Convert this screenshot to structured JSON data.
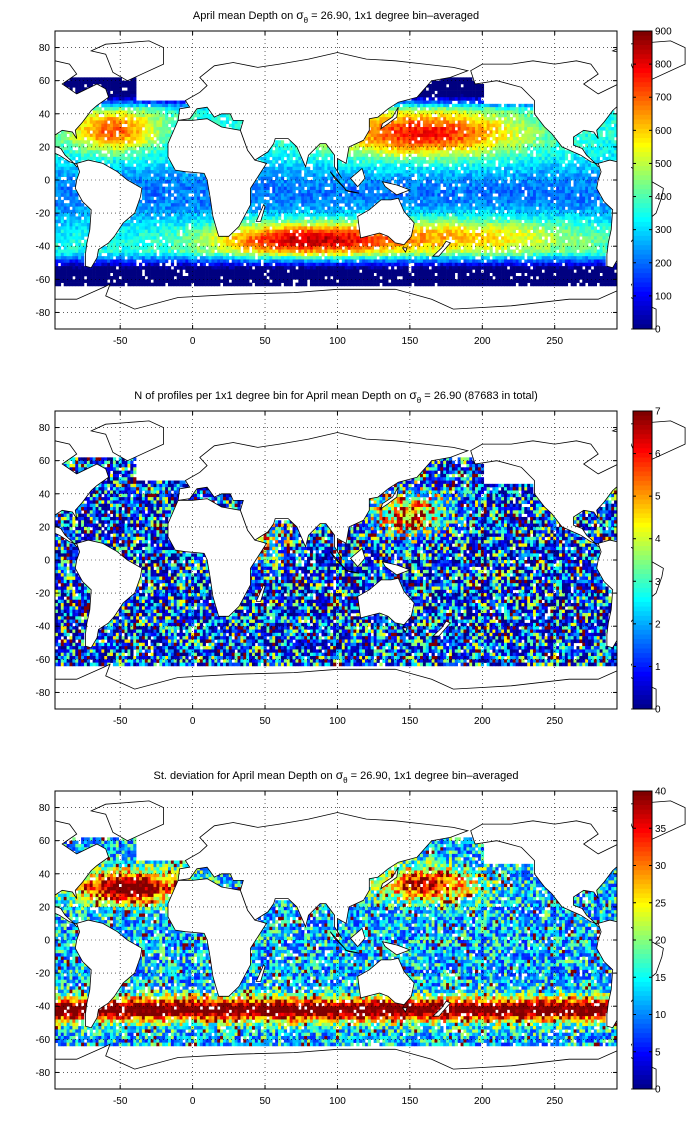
{
  "colors": {
    "colormap": "jet",
    "land_fill": "#ffffff",
    "coastline": "#000000",
    "grid": "#000000",
    "frame": "#000000"
  },
  "chart_data": [
    {
      "type": "heatmap",
      "title_pre": "April mean Depth on ",
      "title_sigma": "σ",
      "title_sub": "θ",
      "title_post": " = 26.90, 1x1 degree bin–averaged",
      "xlim": [
        -95,
        293
      ],
      "ylim": [
        -90,
        90
      ],
      "x_ticks": [
        -50,
        0,
        50,
        100,
        150,
        200,
        250
      ],
      "y_ticks": [
        80,
        60,
        40,
        20,
        0,
        -20,
        -40,
        -60,
        -80
      ],
      "colorbar": {
        "min": 0,
        "max": 900,
        "ticks": [
          900,
          800,
          700,
          600,
          500,
          400,
          300,
          200,
          100,
          0
        ]
      },
      "grid": "dotted",
      "field": "depth"
    },
    {
      "type": "heatmap",
      "title_pre": "N of profiles per 1x1 degree bin for April mean Depth on ",
      "title_sigma": "σ",
      "title_sub": "θ",
      "title_post": " = 26.90 (87683 in total)",
      "xlim": [
        -95,
        293
      ],
      "ylim": [
        -90,
        90
      ],
      "x_ticks": [
        -50,
        0,
        50,
        100,
        150,
        200,
        250
      ],
      "y_ticks": [
        80,
        60,
        40,
        20,
        0,
        -20,
        -40,
        -60,
        -80
      ],
      "colorbar": {
        "min": 0,
        "max": 7,
        "ticks": [
          7,
          6,
          5,
          4,
          3,
          2,
          1,
          0
        ]
      },
      "grid": "dotted",
      "field": "count"
    },
    {
      "type": "heatmap",
      "title_pre": "St. deviation for April mean Depth on ",
      "title_sigma": "σ",
      "title_sub": "θ",
      "title_post": " = 26.90, 1x1 degree bin–averaged",
      "xlim": [
        -95,
        293
      ],
      "ylim": [
        -90,
        90
      ],
      "x_ticks": [
        -50,
        0,
        50,
        100,
        150,
        200,
        250
      ],
      "y_ticks": [
        80,
        60,
        40,
        20,
        0,
        -20,
        -40,
        -60,
        -80
      ],
      "colorbar": {
        "min": 0,
        "max": 40,
        "ticks": [
          40,
          35,
          30,
          25,
          20,
          15,
          10,
          5,
          0
        ]
      },
      "grid": "dotted",
      "field": "std"
    }
  ]
}
